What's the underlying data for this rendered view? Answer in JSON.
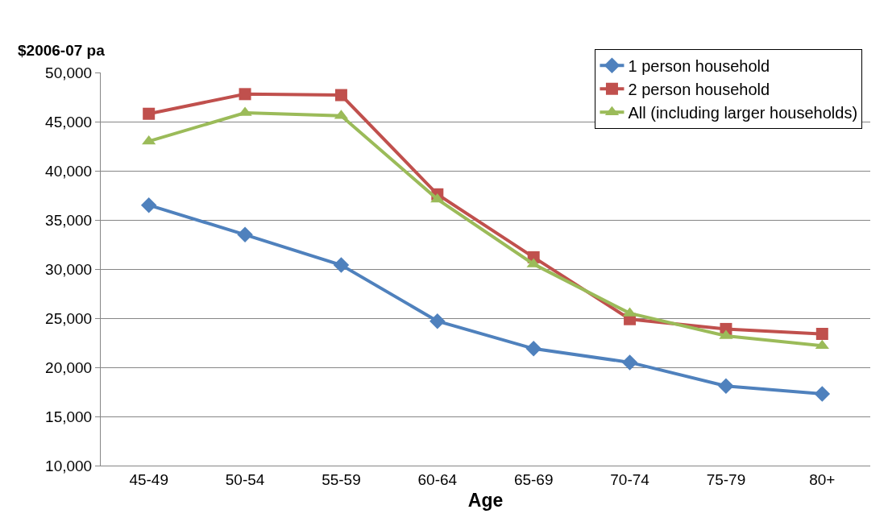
{
  "chart_data": {
    "type": "line",
    "ylabel": "$2006-07 pa",
    "xlabel": "Age",
    "categories": [
      "45-49",
      "50-54",
      "55-59",
      "60-64",
      "65-69",
      "70-74",
      "75-79",
      "80+"
    ],
    "series": [
      {
        "name": "1 person household",
        "color": "#4f81bd",
        "marker": "diamond",
        "values": [
          36500,
          33500,
          30400,
          24700,
          21900,
          20500,
          18100,
          17300
        ]
      },
      {
        "name": "2 person household",
        "color": "#c0504d",
        "marker": "square",
        "values": [
          45800,
          47800,
          47700,
          37600,
          31200,
          24900,
          23900,
          23400
        ]
      },
      {
        "name": "All (including larger households)",
        "color": "#9bbb59",
        "marker": "triangle",
        "values": [
          43000,
          45900,
          45600,
          37100,
          30500,
          25500,
          23200,
          22200
        ]
      }
    ],
    "ylim": [
      10000,
      50000
    ],
    "yticks": [
      {
        "value": 10000,
        "label": "10,000"
      },
      {
        "value": 15000,
        "label": "15,000"
      },
      {
        "value": 20000,
        "label": "20,000"
      },
      {
        "value": 25000,
        "label": "25,000"
      },
      {
        "value": 30000,
        "label": "30,000"
      },
      {
        "value": 35000,
        "label": "35,000"
      },
      {
        "value": 40000,
        "label": "40,000"
      },
      {
        "value": 45000,
        "label": "45,000"
      },
      {
        "value": 50000,
        "label": "50,000"
      }
    ],
    "grid": "y",
    "legend": "top right",
    "line_style": "solid"
  }
}
